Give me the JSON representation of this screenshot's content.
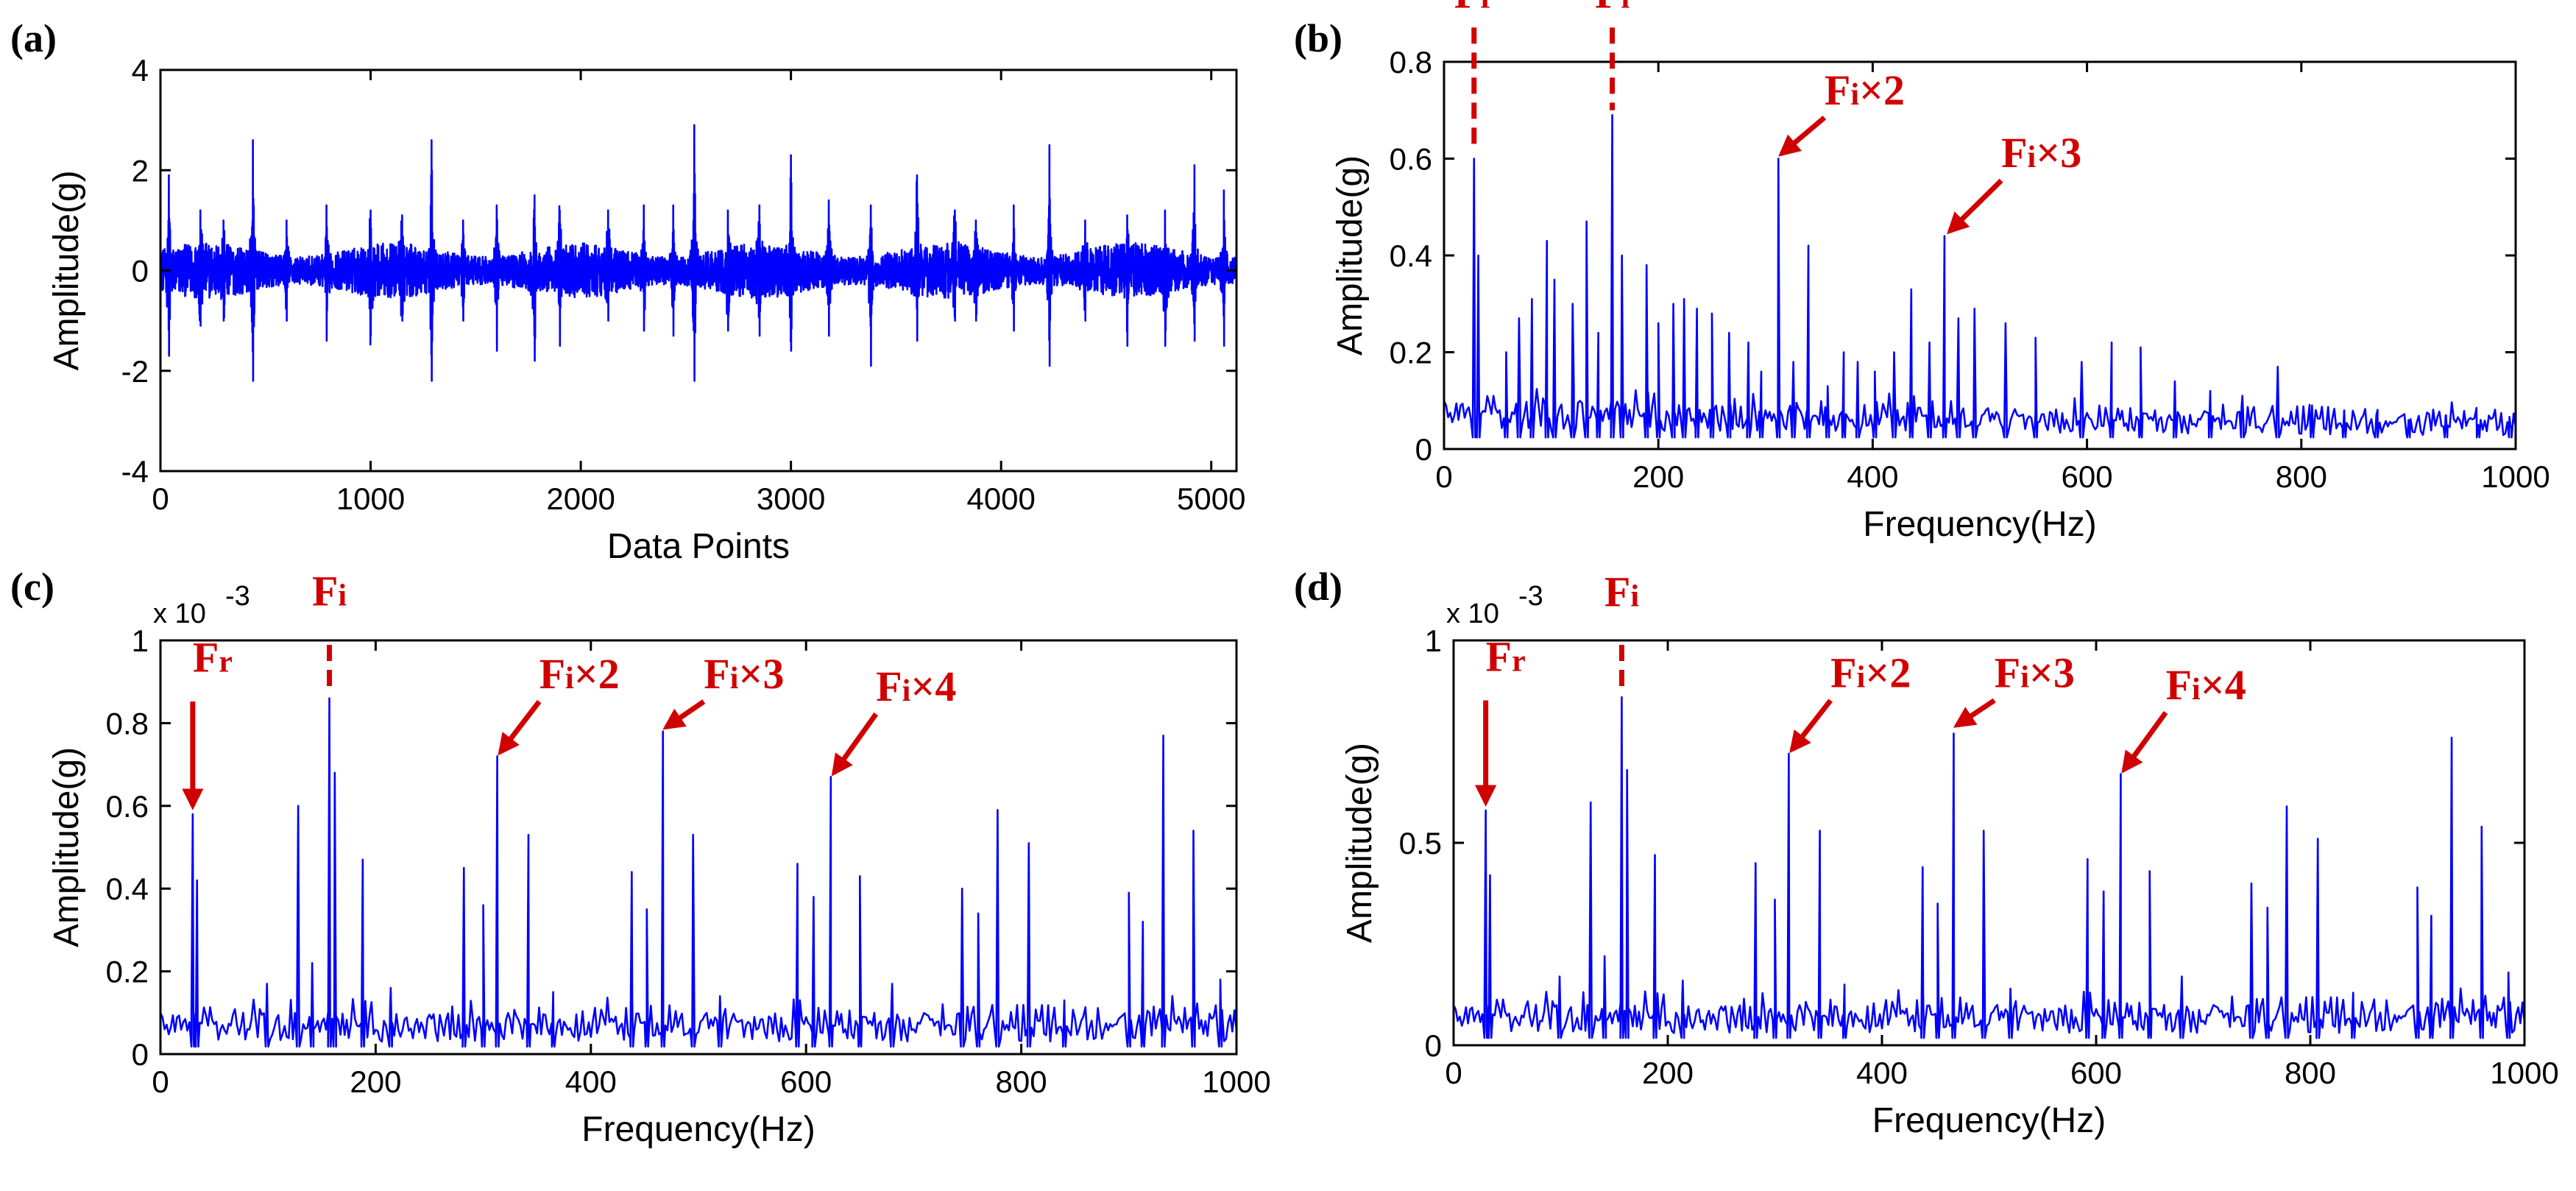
{
  "colors": {
    "series": "#0000ff",
    "annotation": "#d10000",
    "axis": "#000000"
  },
  "chart_data": [
    {
      "id": "a",
      "panel_label": "(a)",
      "type": "line",
      "xlabel": "Data Points",
      "ylabel": "Amplitude(g)",
      "xlim": [
        0,
        5120
      ],
      "ylim": [
        -4,
        4
      ],
      "xticks": [
        0,
        1000,
        2000,
        3000,
        4000,
        5000
      ],
      "xtick_labels": [
        "0",
        "1000",
        "2000",
        "3000",
        "4000",
        "5000"
      ],
      "yticks": [
        -4,
        -2,
        0,
        2,
        4
      ],
      "ytick_labels": [
        "-4",
        "-2",
        "0",
        "2",
        "4"
      ],
      "exponent_label": "",
      "signal": {
        "n_points": 5120,
        "noise_amplitude": 0.55,
        "impulses": [
          {
            "x": 40,
            "peak": 1.9,
            "trough": -1.7
          },
          {
            "x": 190,
            "peak": 1.2,
            "trough": -1.1
          },
          {
            "x": 300,
            "peak": 1.0,
            "trough": -1.0
          },
          {
            "x": 440,
            "peak": 2.6,
            "trough": -2.2
          },
          {
            "x": 600,
            "peak": 1.0,
            "trough": -1.0
          },
          {
            "x": 790,
            "peak": 1.3,
            "trough": -1.4
          },
          {
            "x": 1000,
            "peak": 1.2,
            "trough": -1.3
          },
          {
            "x": 1150,
            "peak": 1.1,
            "trough": -1.0
          },
          {
            "x": 1290,
            "peak": 2.6,
            "trough": -2.2
          },
          {
            "x": 1440,
            "peak": 1.0,
            "trough": -1.0
          },
          {
            "x": 1600,
            "peak": 1.3,
            "trough": -1.6
          },
          {
            "x": 1780,
            "peak": 1.5,
            "trough": -1.8
          },
          {
            "x": 1900,
            "peak": 1.2,
            "trough": -1.5
          },
          {
            "x": 2130,
            "peak": 1.2,
            "trough": -1.0
          },
          {
            "x": 2300,
            "peak": 1.3,
            "trough": -1.2
          },
          {
            "x": 2440,
            "peak": 1.3,
            "trough": -1.3
          },
          {
            "x": 2540,
            "peak": 2.9,
            "trough": -2.2
          },
          {
            "x": 2700,
            "peak": 1.2,
            "trough": -1.2
          },
          {
            "x": 2850,
            "peak": 1.3,
            "trough": -1.3
          },
          {
            "x": 3000,
            "peak": 2.3,
            "trough": -1.6
          },
          {
            "x": 3180,
            "peak": 1.4,
            "trough": -1.3
          },
          {
            "x": 3380,
            "peak": 1.3,
            "trough": -1.9
          },
          {
            "x": 3600,
            "peak": 1.9,
            "trough": -1.4
          },
          {
            "x": 3780,
            "peak": 1.2,
            "trough": -1.0
          },
          {
            "x": 3880,
            "peak": 1.0,
            "trough": -1.0
          },
          {
            "x": 4060,
            "peak": 1.3,
            "trough": -1.2
          },
          {
            "x": 4230,
            "peak": 2.5,
            "trough": -1.9
          },
          {
            "x": 4400,
            "peak": 1.0,
            "trough": -1.0
          },
          {
            "x": 4600,
            "peak": 1.1,
            "trough": -1.5
          },
          {
            "x": 4780,
            "peak": 1.2,
            "trough": -1.5
          },
          {
            "x": 4920,
            "peak": 2.1,
            "trough": -1.4
          },
          {
            "x": 5060,
            "peak": 1.6,
            "trough": -1.5
          }
        ]
      },
      "annotations": []
    },
    {
      "id": "b",
      "panel_label": "(b)",
      "type": "line",
      "xlabel": "Frequency(Hz)",
      "ylabel": "Amplitude(g)",
      "xlim": [
        0,
        1000
      ],
      "ylim": [
        0,
        0.8
      ],
      "xticks": [
        0,
        200,
        400,
        600,
        800,
        1000
      ],
      "xtick_labels": [
        "0",
        "200",
        "400",
        "600",
        "800",
        "1000"
      ],
      "yticks": [
        0,
        0.2,
        0.4,
        0.6,
        0.8
      ],
      "ytick_labels": [
        "0",
        "0.2",
        "0.4",
        "0.6",
        "0.8"
      ],
      "exponent_label": "",
      "spectrum": {
        "baseline": 0.04,
        "baseline_variation": 0.06,
        "decay": 0.3,
        "peaks": [
          {
            "f": 28,
            "a": 0.6
          },
          {
            "f": 32,
            "a": 0.4
          },
          {
            "f": 58,
            "a": 0.2
          },
          {
            "f": 70,
            "a": 0.27
          },
          {
            "f": 82,
            "a": 0.31
          },
          {
            "f": 96,
            "a": 0.43
          },
          {
            "f": 103,
            "a": 0.35
          },
          {
            "f": 120,
            "a": 0.3
          },
          {
            "f": 133,
            "a": 0.47
          },
          {
            "f": 144,
            "a": 0.24
          },
          {
            "f": 157,
            "a": 0.69
          },
          {
            "f": 166,
            "a": 0.4
          },
          {
            "f": 189,
            "a": 0.38
          },
          {
            "f": 200,
            "a": 0.26
          },
          {
            "f": 214,
            "a": 0.3
          },
          {
            "f": 224,
            "a": 0.31
          },
          {
            "f": 236,
            "a": 0.29
          },
          {
            "f": 250,
            "a": 0.28
          },
          {
            "f": 266,
            "a": 0.24
          },
          {
            "f": 284,
            "a": 0.22
          },
          {
            "f": 296,
            "a": 0.16
          },
          {
            "f": 312,
            "a": 0.6
          },
          {
            "f": 326,
            "a": 0.18
          },
          {
            "f": 340,
            "a": 0.42
          },
          {
            "f": 358,
            "a": 0.13
          },
          {
            "f": 373,
            "a": 0.2
          },
          {
            "f": 386,
            "a": 0.18
          },
          {
            "f": 402,
            "a": 0.16
          },
          {
            "f": 420,
            "a": 0.2
          },
          {
            "f": 436,
            "a": 0.33
          },
          {
            "f": 453,
            "a": 0.22
          },
          {
            "f": 467,
            "a": 0.44
          },
          {
            "f": 480,
            "a": 0.27
          },
          {
            "f": 495,
            "a": 0.29
          },
          {
            "f": 524,
            "a": 0.26
          },
          {
            "f": 552,
            "a": 0.23
          },
          {
            "f": 595,
            "a": 0.18
          },
          {
            "f": 623,
            "a": 0.22
          },
          {
            "f": 650,
            "a": 0.21
          },
          {
            "f": 682,
            "a": 0.14
          },
          {
            "f": 715,
            "a": 0.12
          },
          {
            "f": 745,
            "a": 0.11
          },
          {
            "f": 778,
            "a": 0.17
          },
          {
            "f": 810,
            "a": 0.09
          },
          {
            "f": 840,
            "a": 0.08
          },
          {
            "f": 870,
            "a": 0.07
          },
          {
            "f": 900,
            "a": 0.06
          },
          {
            "f": 935,
            "a": 0.07
          },
          {
            "f": 965,
            "a": 0.05
          },
          {
            "f": 995,
            "a": 0.05
          }
        ]
      },
      "annotations": [
        {
          "main": "F",
          "sub": "r",
          "style": "dash",
          "x": 28,
          "y_top": 0.88,
          "y_end": 0.62,
          "label_x": 28,
          "label_y": 0.9
        },
        {
          "main": "F",
          "sub": "i",
          "style": "dash",
          "x": 157,
          "y_top": 0.88,
          "y_end": 0.7,
          "label_x": 157,
          "label_y": 0.9
        },
        {
          "main": "F",
          "sub": "i",
          "suffix": "×2",
          "style": "arrow",
          "x1": 355,
          "y1": 0.7,
          "x2": 315,
          "y2": 0.61,
          "label_x": 355,
          "label_y": 0.7
        },
        {
          "main": "F",
          "sub": "i",
          "suffix": "×3",
          "style": "arrow",
          "x1": 520,
          "y1": 0.57,
          "x2": 472,
          "y2": 0.45,
          "label_x": 520,
          "label_y": 0.57
        }
      ]
    },
    {
      "id": "c",
      "panel_label": "(c)",
      "type": "line",
      "xlabel": "Frequency(Hz)",
      "ylabel": "Amplitude(g)",
      "xlim": [
        0,
        1000
      ],
      "ylim": [
        0,
        1
      ],
      "xticks": [
        0,
        200,
        400,
        600,
        800,
        1000
      ],
      "xtick_labels": [
        "0",
        "200",
        "400",
        "600",
        "800",
        "1000"
      ],
      "yticks": [
        0,
        0.2,
        0.4,
        0.6,
        0.8,
        1
      ],
      "ytick_labels": [
        "0",
        "0.2",
        "0.4",
        "0.6",
        "0.8",
        "1"
      ],
      "exponent_label": "x 10",
      "exponent_power": "-3",
      "spectrum": {
        "baseline": 0.03,
        "baseline_variation": 0.07,
        "decay": 0.0,
        "peaks": [
          {
            "f": 30,
            "a": 0.58
          },
          {
            "f": 34,
            "a": 0.42
          },
          {
            "f": 128,
            "a": 0.6
          },
          {
            "f": 141,
            "a": 0.22
          },
          {
            "f": 157,
            "a": 0.86
          },
          {
            "f": 162,
            "a": 0.68
          },
          {
            "f": 188,
            "a": 0.47
          },
          {
            "f": 282,
            "a": 0.45
          },
          {
            "f": 300,
            "a": 0.36
          },
          {
            "f": 313,
            "a": 0.72
          },
          {
            "f": 342,
            "a": 0.53
          },
          {
            "f": 438,
            "a": 0.44
          },
          {
            "f": 452,
            "a": 0.35
          },
          {
            "f": 467,
            "a": 0.78
          },
          {
            "f": 495,
            "a": 0.53
          },
          {
            "f": 592,
            "a": 0.46
          },
          {
            "f": 607,
            "a": 0.38
          },
          {
            "f": 623,
            "a": 0.67
          },
          {
            "f": 650,
            "a": 0.43
          },
          {
            "f": 745,
            "a": 0.4
          },
          {
            "f": 760,
            "a": 0.34
          },
          {
            "f": 778,
            "a": 0.59
          },
          {
            "f": 807,
            "a": 0.51
          },
          {
            "f": 900,
            "a": 0.39
          },
          {
            "f": 913,
            "a": 0.32
          },
          {
            "f": 932,
            "a": 0.77
          },
          {
            "f": 960,
            "a": 0.54
          },
          {
            "f": 99,
            "a": 0.17
          },
          {
            "f": 214,
            "a": 0.16
          },
          {
            "f": 365,
            "a": 0.15
          },
          {
            "f": 520,
            "a": 0.14
          },
          {
            "f": 680,
            "a": 0.17
          },
          {
            "f": 840,
            "a": 0.13
          },
          {
            "f": 985,
            "a": 0.18
          }
        ]
      },
      "annotations": [
        {
          "main": "F",
          "sub": "r",
          "style": "arrow",
          "x1": 30,
          "y1": 0.87,
          "x2": 30,
          "y2": 0.6,
          "label_x": 30,
          "label_y": 0.91
        },
        {
          "main": "F",
          "sub": "i",
          "style": "dash",
          "x": 157,
          "y_top": 1.0,
          "y_end": 0.87,
          "label_x": 157,
          "label_y": 1.07
        },
        {
          "main": "F",
          "sub": "i",
          "suffix": "×2",
          "style": "arrow",
          "x1": 352,
          "y1": 0.87,
          "x2": 316,
          "y2": 0.73,
          "label_x": 352,
          "label_y": 0.87
        },
        {
          "main": "F",
          "sub": "i",
          "suffix": "×3",
          "style": "arrow",
          "x1": 505,
          "y1": 0.87,
          "x2": 470,
          "y2": 0.79,
          "label_x": 505,
          "label_y": 0.87
        },
        {
          "main": "F",
          "sub": "i",
          "suffix": "×4",
          "style": "arrow",
          "x1": 665,
          "y1": 0.84,
          "x2": 626,
          "y2": 0.68,
          "label_x": 665,
          "label_y": 0.84
        }
      ]
    },
    {
      "id": "d",
      "panel_label": "(d)",
      "type": "line",
      "xlabel": "Frequency(Hz)",
      "ylabel": "Amplitude(g)",
      "xlim": [
        0,
        1000
      ],
      "ylim": [
        0,
        1
      ],
      "xticks": [
        0,
        200,
        400,
        600,
        800,
        1000
      ],
      "xtick_labels": [
        "0",
        "200",
        "400",
        "600",
        "800",
        "1000"
      ],
      "yticks": [
        0,
        0.5,
        1
      ],
      "ytick_labels": [
        "0",
        "0.5",
        "1"
      ],
      "exponent_label": "x 10",
      "exponent_power": "-3",
      "spectrum": {
        "baseline": 0.03,
        "baseline_variation": 0.07,
        "decay": 0.0,
        "peaks": [
          {
            "f": 30,
            "a": 0.58
          },
          {
            "f": 34,
            "a": 0.42
          },
          {
            "f": 128,
            "a": 0.6
          },
          {
            "f": 141,
            "a": 0.22
          },
          {
            "f": 157,
            "a": 0.86
          },
          {
            "f": 162,
            "a": 0.68
          },
          {
            "f": 188,
            "a": 0.47
          },
          {
            "f": 282,
            "a": 0.45
          },
          {
            "f": 300,
            "a": 0.36
          },
          {
            "f": 313,
            "a": 0.72
          },
          {
            "f": 342,
            "a": 0.53
          },
          {
            "f": 438,
            "a": 0.44
          },
          {
            "f": 452,
            "a": 0.35
          },
          {
            "f": 467,
            "a": 0.77
          },
          {
            "f": 495,
            "a": 0.53
          },
          {
            "f": 592,
            "a": 0.46
          },
          {
            "f": 607,
            "a": 0.38
          },
          {
            "f": 623,
            "a": 0.67
          },
          {
            "f": 650,
            "a": 0.43
          },
          {
            "f": 745,
            "a": 0.4
          },
          {
            "f": 760,
            "a": 0.34
          },
          {
            "f": 778,
            "a": 0.59
          },
          {
            "f": 807,
            "a": 0.51
          },
          {
            "f": 900,
            "a": 0.39
          },
          {
            "f": 913,
            "a": 0.32
          },
          {
            "f": 932,
            "a": 0.76
          },
          {
            "f": 960,
            "a": 0.54
          },
          {
            "f": 99,
            "a": 0.17
          },
          {
            "f": 214,
            "a": 0.16
          },
          {
            "f": 365,
            "a": 0.15
          },
          {
            "f": 520,
            "a": 0.14
          },
          {
            "f": 680,
            "a": 0.17
          },
          {
            "f": 840,
            "a": 0.13
          },
          {
            "f": 985,
            "a": 0.18
          }
        ]
      },
      "annotations": [
        {
          "main": "F",
          "sub": "r",
          "style": "arrow",
          "x1": 30,
          "y1": 0.87,
          "x2": 30,
          "y2": 0.6,
          "label_x": 30,
          "label_y": 0.91
        },
        {
          "main": "F",
          "sub": "i",
          "style": "dash",
          "x": 157,
          "y_top": 1.0,
          "y_end": 0.87,
          "label_x": 157,
          "label_y": 1.07
        },
        {
          "main": "F",
          "sub": "i",
          "suffix": "×2",
          "style": "arrow",
          "x1": 352,
          "y1": 0.87,
          "x2": 316,
          "y2": 0.73,
          "label_x": 352,
          "label_y": 0.87
        },
        {
          "main": "F",
          "sub": "i",
          "suffix": "×3",
          "style": "arrow",
          "x1": 505,
          "y1": 0.87,
          "x2": 470,
          "y2": 0.79,
          "label_x": 505,
          "label_y": 0.87
        },
        {
          "main": "F",
          "sub": "i",
          "suffix": "×4",
          "style": "arrow",
          "x1": 665,
          "y1": 0.84,
          "x2": 626,
          "y2": 0.68,
          "label_x": 665,
          "label_y": 0.84
        }
      ]
    }
  ]
}
